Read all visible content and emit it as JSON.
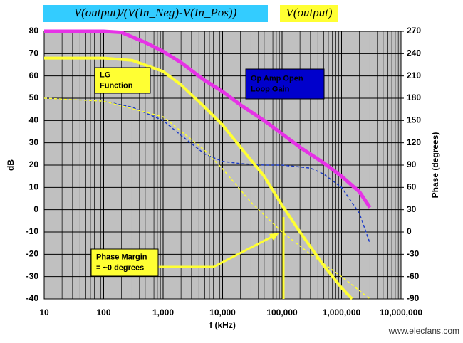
{
  "chart_data": {
    "type": "line",
    "xscale": "log",
    "xlabel": "f (kHz)",
    "ylabel": "dB",
    "y2label": "Phase (degrees)",
    "xlim": [
      10,
      10000000
    ],
    "xticks": [
      10,
      100,
      {
        "value": 1000,
        "label": "1,000"
      },
      {
        "value": 10000,
        "label": "10,000"
      },
      {
        "value": 100000,
        "label": "100,000"
      },
      {
        "value": 1000000,
        "label": "1,000,000"
      },
      {
        "value": 10000000,
        "label": "10,000,000"
      }
    ],
    "ylim": [
      -40,
      80
    ],
    "yticks": [
      -40,
      -30,
      -20,
      -10,
      0,
      10,
      20,
      30,
      40,
      50,
      60,
      70,
      80
    ],
    "y2lim": [
      -90,
      270
    ],
    "y2ticks": [
      -90,
      -60,
      -30,
      0,
      30,
      60,
      90,
      120,
      150,
      180,
      210,
      240,
      270
    ],
    "grid": true,
    "background": "#c0c0c0",
    "series": [
      {
        "color": "#e632e6",
        "width": 5,
        "dash": false,
        "x": [
          10,
          100,
          200,
          500,
          1000,
          2000,
          5000,
          10000,
          20000,
          50000,
          100000,
          200000,
          500000,
          1000000,
          2000000,
          3000000
        ],
        "values": [
          80,
          80,
          79.5,
          75,
          71,
          66,
          58,
          53,
          47,
          40,
          34,
          28,
          21,
          15,
          8,
          1
        ]
      },
      {
        "color": "#ffff33",
        "width": 4,
        "dash": false,
        "x": [
          10,
          100,
          300,
          1000,
          2000,
          5000,
          10000,
          20000,
          50000,
          100000,
          200000,
          500000,
          1000000,
          1500000
        ],
        "values": [
          68,
          68,
          67,
          62,
          56,
          46,
          38,
          28,
          15,
          2,
          -10,
          -25,
          -35,
          -40
        ]
      },
      {
        "color": "#1c3cc8",
        "width": 1.5,
        "dash": true,
        "axis": "y2",
        "x": [
          10,
          100,
          300,
          1000,
          2000,
          5000,
          10000,
          20000,
          50000,
          100000,
          300000,
          500000,
          1000000,
          2000000,
          3000000
        ],
        "values": [
          180,
          176,
          168,
          150,
          130,
          105,
          95,
          92,
          90,
          90,
          86,
          78,
          60,
          25,
          -15
        ]
      },
      {
        "color": "#ffff33",
        "width": 1.5,
        "dash": true,
        "axis": "y2",
        "x": [
          10,
          100,
          1000,
          5000,
          10000,
          30000,
          100000,
          300000,
          1000000,
          3000000
        ],
        "values": [
          180,
          176,
          155,
          110,
          85,
          40,
          0,
          -30,
          -60,
          -90
        ]
      }
    ],
    "annotations": [
      {
        "lines": [
          "V(output)/(V(In_Neg)-V(In_Pos))"
        ],
        "background": "#33ccff",
        "color": "#1010a0"
      },
      {
        "lines": [
          "V(output)"
        ],
        "background": "#ffff33",
        "color": "#1010a0"
      },
      {
        "lines": [
          "LG",
          "Function"
        ],
        "background": "#ffff33",
        "color": "#000000"
      },
      {
        "lines": [
          "Op Amp Open",
          "Loop Gain"
        ],
        "background": "#0000cc",
        "color": "#ffffff"
      },
      {
        "lines": [
          "Phase Margin",
          "= ~0 degrees"
        ],
        "background": "#ffff33",
        "color": "#000000"
      }
    ],
    "watermark": "www.elecfans.com"
  }
}
